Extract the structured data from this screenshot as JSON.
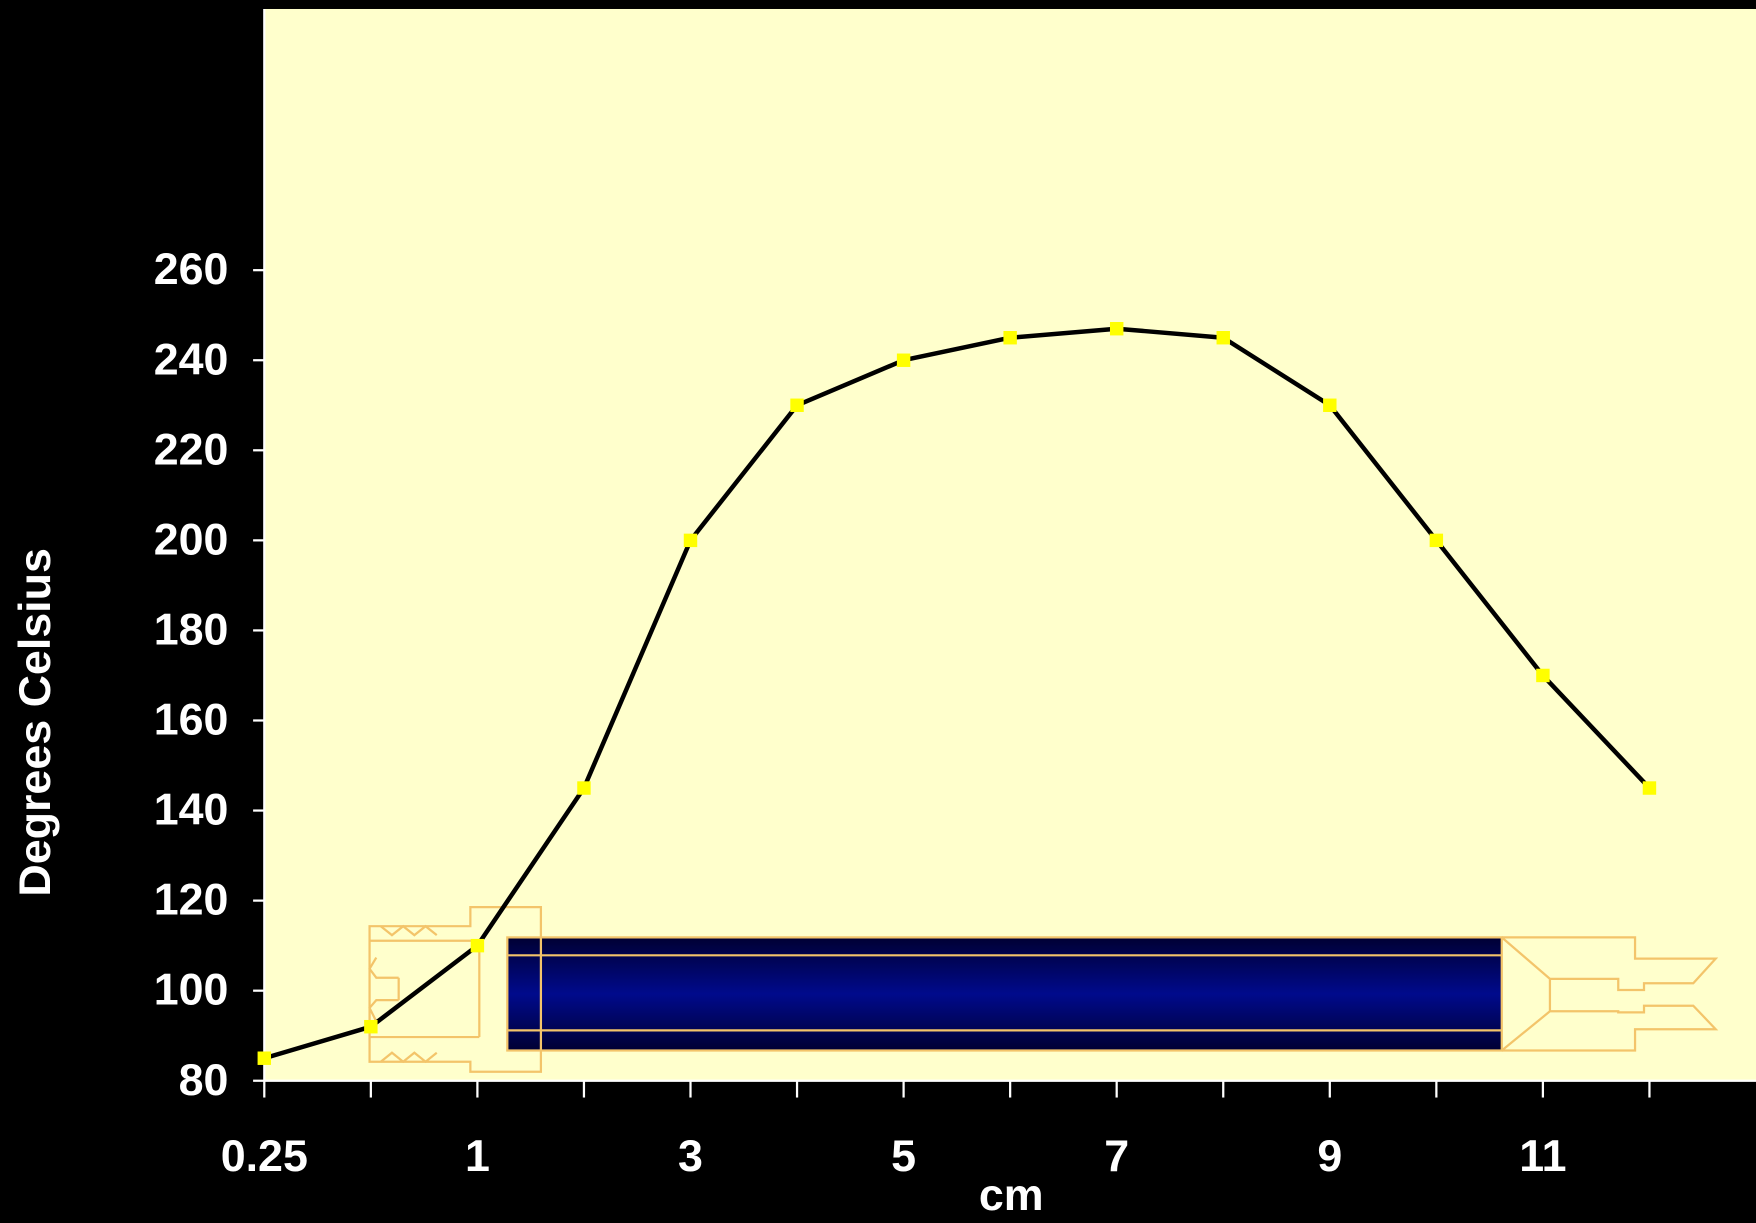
{
  "chart_data": {
    "type": "line",
    "x_label": "cm",
    "y_label": "Degrees Celsius",
    "categories": [
      "0.25",
      null,
      "1",
      null,
      "3",
      null,
      "5",
      null,
      "7",
      null,
      "9",
      null,
      "11",
      null
    ],
    "values": [
      85,
      92,
      110,
      145,
      200,
      230,
      240,
      245,
      247,
      245,
      230,
      200,
      170,
      145
    ],
    "color": "#000000",
    "marker_color": "#ffff00",
    "background": "#ffffcc",
    "ylim": [
      80,
      318
    ],
    "yticks": [
      80,
      100,
      120,
      140,
      160,
      180,
      200,
      220,
      240,
      260
    ]
  }
}
